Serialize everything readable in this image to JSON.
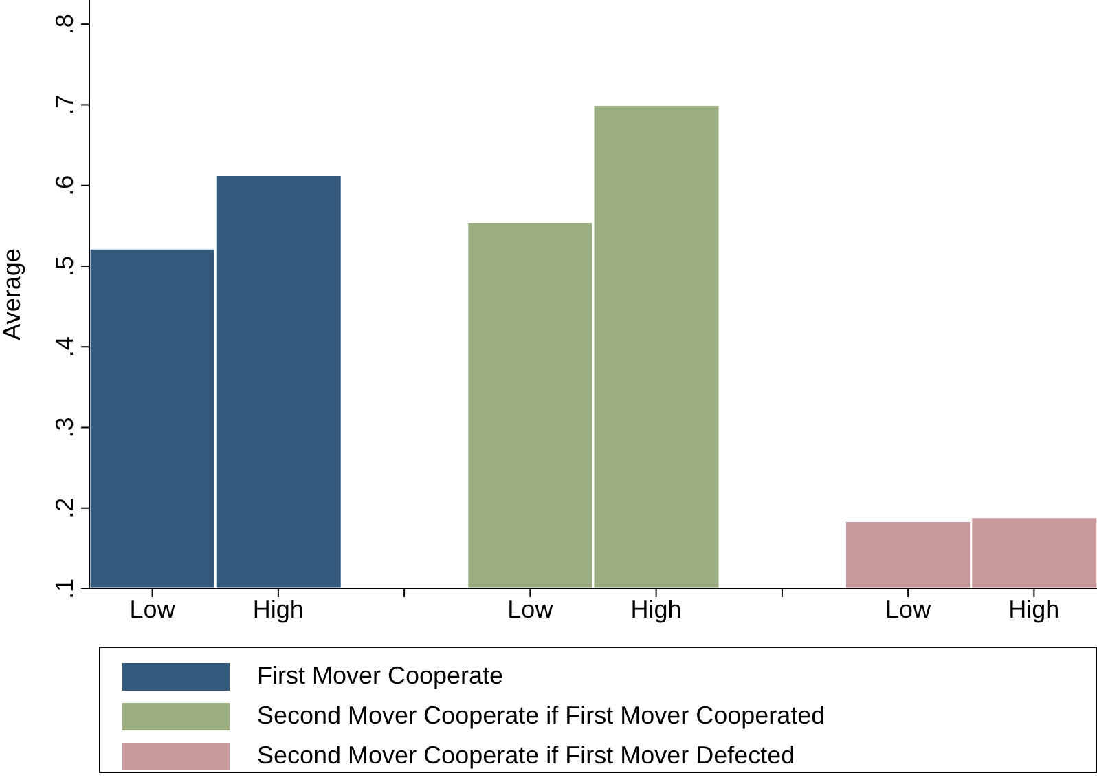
{
  "chart_data": {
    "type": "bar",
    "ylabel": "Average",
    "categories": [
      "Low",
      "High",
      null,
      "Low",
      "High",
      null,
      "Low",
      "High"
    ],
    "stacked": true,
    "series": [
      {
        "name": "First Mover Cooperate",
        "color": "#335a7c",
        "values": [
          0.522,
          0.613,
          null,
          null,
          null,
          null,
          null,
          null
        ]
      },
      {
        "name": "Second Mover Cooperate if First Mover Cooperated",
        "color": "#9bad81",
        "values": [
          null,
          null,
          null,
          0.555,
          0.7,
          null,
          null,
          null
        ]
      },
      {
        "name": "Second Mover Cooperate if First Mover Defected",
        "color": "#c99a9b",
        "values": [
          null,
          null,
          null,
          null,
          null,
          null,
          0.184,
          0.189
        ]
      }
    ],
    "ylim": [
      0.1,
      0.83
    ],
    "yticks": [
      {
        "value": 0.1,
        "label": ".1"
      },
      {
        "value": 0.2,
        "label": ".2"
      },
      {
        "value": 0.3,
        "label": ".3"
      },
      {
        "value": 0.4,
        "label": ".4"
      },
      {
        "value": 0.5,
        "label": ".5"
      },
      {
        "value": 0.6,
        "label": ".6"
      },
      {
        "value": 0.7,
        "label": ".7"
      },
      {
        "value": 0.8,
        "label": ".8"
      }
    ],
    "grid": false,
    "legend": "bottom"
  }
}
